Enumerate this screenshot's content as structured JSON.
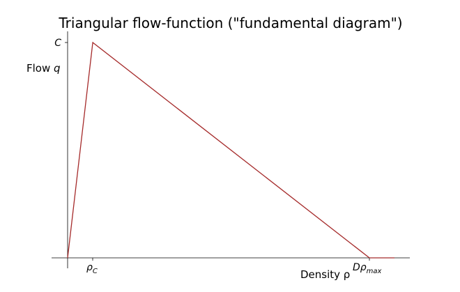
{
  "chart_data": {
    "type": "line",
    "title": "Triangular flow-function (\"fundamental diagram\")",
    "ylabel_prefix": "Flow ",
    "ylabel_var": "q",
    "xlabel": "Density ρ",
    "xticks": [
      {
        "label_main": "ρ",
        "label_sub": "C",
        "value": 1
      },
      {
        "label_main": "Dρ",
        "label_sub": "max",
        "value": 12
      }
    ],
    "yticks": [
      {
        "label": "C",
        "value": 1
      }
    ],
    "series": [
      {
        "color": "#a52a2a",
        "x": [
          0,
          1,
          12
        ],
        "y": [
          0,
          1,
          0
        ]
      }
    ],
    "xlim": [
      -0.6,
      13.3
    ],
    "ylim": [
      0,
      1.05
    ],
    "grid": false
  }
}
